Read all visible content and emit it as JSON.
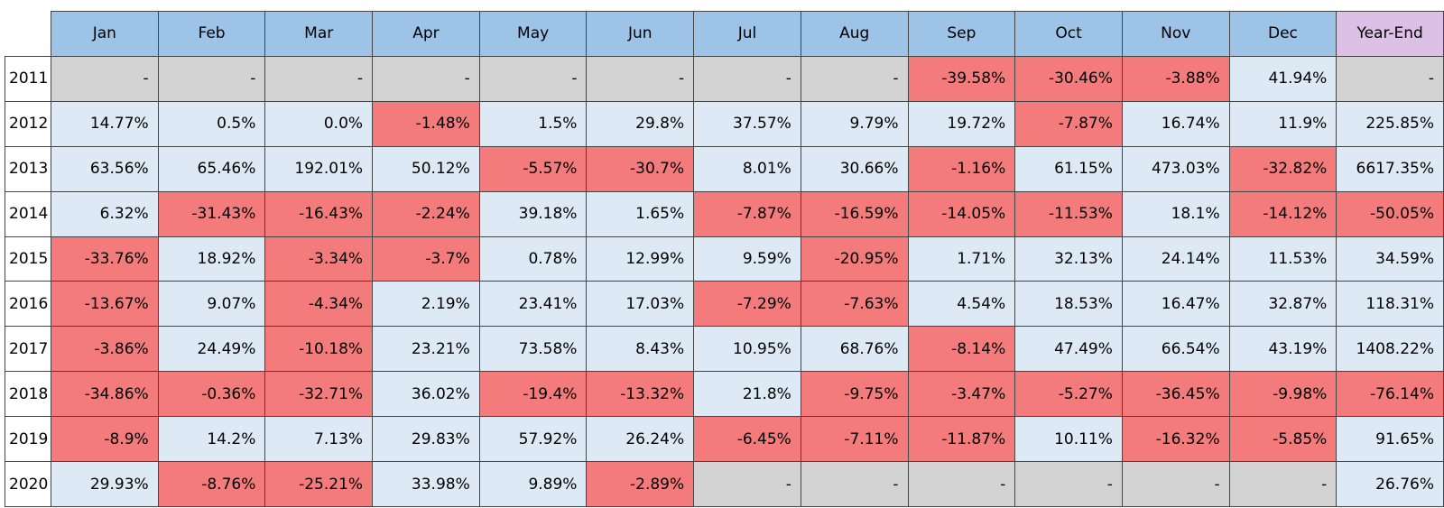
{
  "table": {
    "columns": [
      "Jan",
      "Feb",
      "Mar",
      "Apr",
      "May",
      "Jun",
      "Jul",
      "Aug",
      "Sep",
      "Oct",
      "Nov",
      "Dec",
      "Year-End"
    ],
    "rows": [
      {
        "label": "2011",
        "cells": [
          "-",
          "-",
          "-",
          "-",
          "-",
          "-",
          "-",
          "-",
          "-39.58%",
          "-30.46%",
          "-3.88%",
          "41.94%",
          "-"
        ]
      },
      {
        "label": "2012",
        "cells": [
          "14.77%",
          "0.5%",
          "0.0%",
          "-1.48%",
          "1.5%",
          "29.8%",
          "37.57%",
          "9.79%",
          "19.72%",
          "-7.87%",
          "16.74%",
          "11.9%",
          "225.85%"
        ]
      },
      {
        "label": "2013",
        "cells": [
          "63.56%",
          "65.46%",
          "192.01%",
          "50.12%",
          "-5.57%",
          "-30.7%",
          "8.01%",
          "30.66%",
          "-1.16%",
          "61.15%",
          "473.03%",
          "-32.82%",
          "6617.35%"
        ]
      },
      {
        "label": "2014",
        "cells": [
          "6.32%",
          "-31.43%",
          "-16.43%",
          "-2.24%",
          "39.18%",
          "1.65%",
          "-7.87%",
          "-16.59%",
          "-14.05%",
          "-11.53%",
          "18.1%",
          "-14.12%",
          "-50.05%"
        ]
      },
      {
        "label": "2015",
        "cells": [
          "-33.76%",
          "18.92%",
          "-3.34%",
          "-3.7%",
          "0.78%",
          "12.99%",
          "9.59%",
          "-20.95%",
          "1.71%",
          "32.13%",
          "24.14%",
          "11.53%",
          "34.59%"
        ]
      },
      {
        "label": "2016",
        "cells": [
          "-13.67%",
          "9.07%",
          "-4.34%",
          "2.19%",
          "23.41%",
          "17.03%",
          "-7.29%",
          "-7.63%",
          "4.54%",
          "18.53%",
          "16.47%",
          "32.87%",
          "118.31%"
        ]
      },
      {
        "label": "2017",
        "cells": [
          "-3.86%",
          "24.49%",
          "-10.18%",
          "23.21%",
          "73.58%",
          "8.43%",
          "10.95%",
          "68.76%",
          "-8.14%",
          "47.49%",
          "66.54%",
          "43.19%",
          "1408.22%"
        ]
      },
      {
        "label": "2018",
        "cells": [
          "-34.86%",
          "-0.36%",
          "-32.71%",
          "36.02%",
          "-19.4%",
          "-13.32%",
          "21.8%",
          "-9.75%",
          "-3.47%",
          "-5.27%",
          "-36.45%",
          "-9.98%",
          "-76.14%"
        ]
      },
      {
        "label": "2019",
        "cells": [
          "-8.9%",
          "14.2%",
          "7.13%",
          "29.83%",
          "57.92%",
          "26.24%",
          "-6.45%",
          "-7.11%",
          "-11.87%",
          "10.11%",
          "-16.32%",
          "-5.85%",
          "91.65%"
        ]
      },
      {
        "label": "2020",
        "cells": [
          "29.93%",
          "-8.76%",
          "-25.21%",
          "33.98%",
          "9.89%",
          "-2.89%",
          "-",
          "-",
          "-",
          "-",
          "-",
          "-",
          "26.76%"
        ]
      }
    ],
    "colors": {
      "header": "#9dc3e6",
      "highlight_header": "#dcc0e6",
      "positive": "#dde9f5",
      "negative": "#f47b7b",
      "missing": "#d3d3d3"
    }
  }
}
